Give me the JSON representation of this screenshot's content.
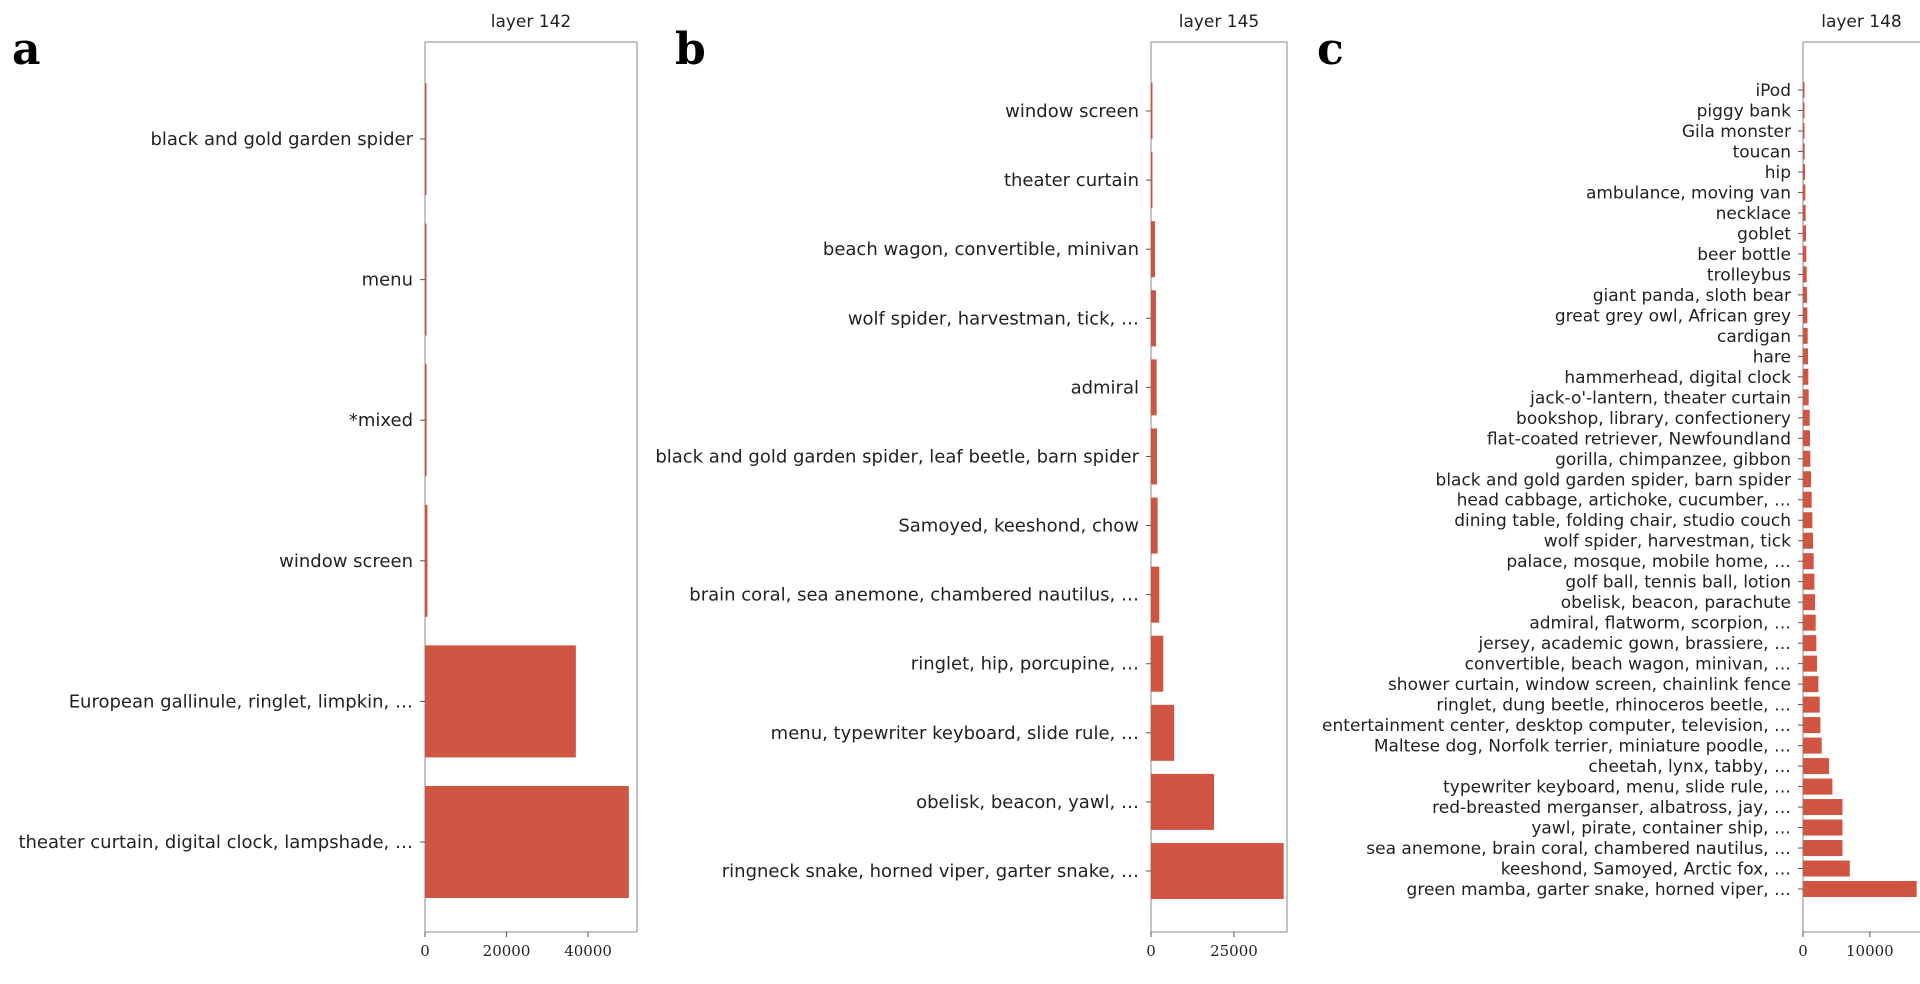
{
  "colors": {
    "bar": "#cf5542",
    "axis": "#888888",
    "text": "#222222"
  },
  "chart_data": [
    {
      "panel": "a",
      "type": "bar",
      "orientation": "horizontal",
      "title": "layer 142",
      "categories": [
        "black and gold garden spider",
        "menu",
        "*mixed",
        "window screen",
        "European gallinule, ringlet, limpkin, …",
        "theater curtain, digital clock, lampshade, …"
      ],
      "values": [
        200,
        250,
        400,
        600,
        37000,
        50000
      ],
      "xlim": [
        0,
        52000
      ],
      "xticks": [
        0,
        20000,
        40000
      ],
      "xtick_labels": [
        "0",
        "20000",
        "40000"
      ]
    },
    {
      "panel": "b",
      "type": "bar",
      "orientation": "horizontal",
      "title": "layer 145",
      "categories": [
        "window screen",
        "theater curtain",
        "beach wagon, convertible, minivan",
        "wolf spider, harvestman, tick, …",
        "admiral",
        "black and gold garden spider, leaf beetle, barn spider",
        "Samoyed, keeshond, chow",
        "brain coral, sea anemone, chambered nautilus, …",
        "ringlet, hip, porcupine, …",
        "menu, typewriter keyboard, slide rule, …",
        "obelisk, beacon, yawl, …",
        "ringneck snake, horned viper, garter snake, …"
      ],
      "values": [
        100,
        200,
        1200,
        1500,
        1700,
        1800,
        2000,
        2500,
        3700,
        7000,
        19000,
        40000
      ],
      "xlim": [
        0,
        41000
      ],
      "xticks": [
        0,
        25000
      ],
      "xtick_labels": [
        "0",
        "25000"
      ]
    },
    {
      "panel": "c",
      "type": "bar",
      "orientation": "horizontal",
      "title": "layer 148",
      "categories": [
        "iPod",
        "piggy bank",
        "Gila monster",
        "toucan",
        "hip",
        "ambulance, moving van",
        "necklace",
        "goblet",
        "beer bottle",
        "trolleybus",
        "giant panda, sloth bear",
        "great grey owl, African grey",
        "cardigan",
        "hare",
        "hammerhead, digital clock",
        "jack-o'-lantern, theater curtain",
        "bookshop, library, confectionery",
        "flat-coated retriever, Newfoundland",
        "gorilla, chimpanzee, gibbon",
        "black and gold garden spider, barn spider",
        "head cabbage, artichoke, cucumber, …",
        "dining table, folding chair, studio couch",
        "wolf spider, harvestman, tick",
        "palace, mosque, mobile home, …",
        "golf ball, tennis ball, lotion",
        "obelisk, beacon, parachute",
        "admiral, flatworm, scorpion, …",
        "jersey, academic gown, brassiere, …",
        "convertible, beach wagon, minivan, …",
        "shower curtain, window screen, chainlink fence",
        "ringlet, dung beetle, rhinoceros beetle, …",
        "entertainment center, desktop computer, television, …",
        "Maltese dog, Norfolk terrier, miniature poodle, …",
        "cheetah, lynx, tabby, …",
        "typewriter keyboard, menu, slide rule, …",
        "red-breasted merganser, albatross, jay, …",
        "yawl, pirate, container ship, …",
        "sea anemone, brain coral, chambered nautilus, …",
        "keeshond, Samoyed, Arctic fox, …",
        "green mamba, garter snake, horned viper, …"
      ],
      "values": [
        100,
        150,
        200,
        250,
        300,
        350,
        400,
        450,
        500,
        550,
        600,
        650,
        700,
        750,
        800,
        850,
        1000,
        1050,
        1100,
        1200,
        1300,
        1400,
        1500,
        1600,
        1700,
        1800,
        1900,
        2000,
        2100,
        2300,
        2500,
        2600,
        2800,
        3900,
        4400,
        5900,
        5900,
        5900,
        7000,
        17000
      ],
      "xlim": [
        0,
        17500
      ],
      "xticks": [
        0,
        10000
      ],
      "xtick_labels": [
        "0",
        "10000"
      ]
    }
  ]
}
